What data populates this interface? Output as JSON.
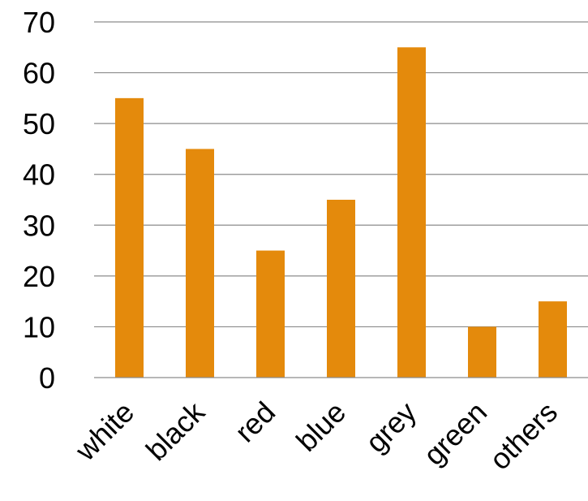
{
  "chart_data": {
    "type": "bar",
    "categories": [
      "white",
      "black",
      "red",
      "blue",
      "grey",
      "green",
      "others"
    ],
    "values": [
      55,
      45,
      25,
      35,
      65,
      10,
      15
    ],
    "ylim": [
      0,
      70
    ],
    "yticks": [
      0,
      10,
      20,
      30,
      40,
      50,
      60,
      70
    ],
    "grid": true,
    "bar_color": "#E48A0C",
    "title": "",
    "xlabel": "",
    "ylabel": ""
  }
}
